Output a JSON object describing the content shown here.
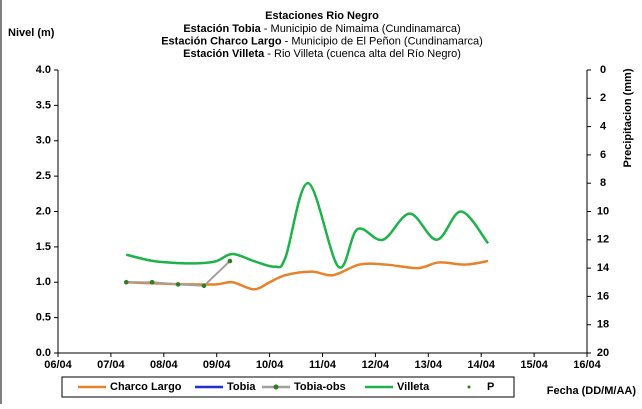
{
  "chart_data": {
    "type": "line",
    "title": "Estaciones Rio Negro",
    "subtitle": [
      {
        "station": "Estación Tobia",
        "text": " - Municipio de Nimaima (Cundinamarca)"
      },
      {
        "station": "Estación Charco Largo",
        "text": " - Municipio de El Peñon (Cundinamarca)"
      },
      {
        "station": "Estación Villeta",
        "text": " -  Rio Villeta (cuenca alta del Río Negro)"
      }
    ],
    "ylabel": "Nivel (m)",
    "y2label": "Precipitacion (mm)",
    "xlabel": "Fecha (DD/M/AA)",
    "xlim": [
      6,
      16
    ],
    "xticks": [
      {
        "value": 6,
        "label": "06/04"
      },
      {
        "value": 7,
        "label": "07/04"
      },
      {
        "value": 8,
        "label": "08/04"
      },
      {
        "value": 9,
        "label": "09/04"
      },
      {
        "value": 10,
        "label": "10/04"
      },
      {
        "value": 11,
        "label": "11/04"
      },
      {
        "value": 12,
        "label": "12/04"
      },
      {
        "value": 13,
        "label": "13/04"
      },
      {
        "value": 14,
        "label": "14/04"
      },
      {
        "value": 15,
        "label": "15/04"
      },
      {
        "value": 16,
        "label": "16/04"
      }
    ],
    "ylim": [
      0,
      4
    ],
    "yticks": [
      {
        "value": 0,
        "label": "0.0"
      },
      {
        "value": 0.5,
        "label": "0.5"
      },
      {
        "value": 1,
        "label": "1.0"
      },
      {
        "value": 1.5,
        "label": "1.5"
      },
      {
        "value": 2,
        "label": "2.0"
      },
      {
        "value": 2.5,
        "label": "2.5"
      },
      {
        "value": 3,
        "label": "3.0"
      },
      {
        "value": 3.5,
        "label": "3.5"
      },
      {
        "value": 4,
        "label": "4.0"
      }
    ],
    "y2lim": [
      0,
      20
    ],
    "y2_inverted": true,
    "y2ticks": [
      0,
      2,
      4,
      6,
      8,
      10,
      12,
      14,
      16,
      18,
      20
    ],
    "series": [
      {
        "name": "Charco Largo",
        "color": "#e8822a",
        "style": "line",
        "x": [
          7.29,
          8.0,
          8.5,
          9.0,
          9.3,
          9.7,
          10.0,
          10.3,
          10.8,
          11.2,
          11.7,
          12.2,
          12.8,
          13.2,
          13.7,
          14.13
        ],
        "values": [
          1.0,
          0.98,
          0.97,
          0.97,
          1.0,
          0.9,
          1.0,
          1.1,
          1.15,
          1.1,
          1.25,
          1.25,
          1.2,
          1.28,
          1.25,
          1.3
        ]
      },
      {
        "name": "Tobia",
        "color": "#1f2fd0",
        "style": "line",
        "x": [],
        "values": []
      },
      {
        "name": "Tobia-obs",
        "color": "#a0a0a0",
        "marker_color": "#2e7d1e",
        "style": "line-marker",
        "x": [
          7.29,
          7.78,
          8.27,
          8.76,
          9.25
        ],
        "values": [
          1.0,
          1.0,
          0.97,
          0.95,
          1.3
        ]
      },
      {
        "name": "Villeta",
        "color": "#1db34a",
        "style": "line",
        "x": [
          7.29,
          7.8,
          8.3,
          8.7,
          9.0,
          9.3,
          9.7,
          10.1,
          10.3,
          10.73,
          11.3,
          11.66,
          12.14,
          12.65,
          13.16,
          13.62,
          14.13
        ],
        "values": [
          1.39,
          1.3,
          1.27,
          1.27,
          1.3,
          1.4,
          1.3,
          1.22,
          1.35,
          2.4,
          1.22,
          1.75,
          1.6,
          1.97,
          1.6,
          2.0,
          1.55
        ]
      },
      {
        "name": "P",
        "color": "#2e7d1e",
        "style": "marker",
        "axis": "y2",
        "x": [],
        "values": []
      }
    ]
  }
}
